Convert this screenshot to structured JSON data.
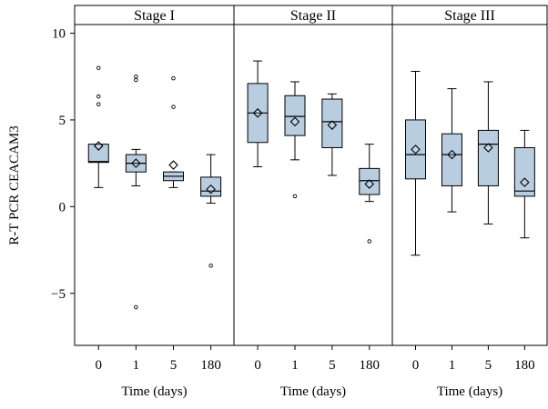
{
  "chart_data": {
    "type": "boxplot",
    "ylabel": "R-T PCR CEACAM3",
    "xlabel": "Time (days)",
    "ylim": [
      -8,
      10.5
    ],
    "y_ticks": [
      -5,
      0,
      5,
      10
    ],
    "y_tick_labels": [
      "−5",
      "0",
      "5",
      "10"
    ],
    "categories": [
      "0",
      "1",
      "5",
      "180"
    ],
    "box_color": "#b8cde0",
    "grid": false,
    "panels": [
      {
        "title": "Stage I",
        "boxes": [
          {
            "category": "0",
            "whisker_low": 1.1,
            "q1": 2.55,
            "median": 2.6,
            "q3": 3.6,
            "whisker_high": 3.6,
            "mean": 3.5,
            "outliers": [
              8.0,
              6.35,
              5.9
            ]
          },
          {
            "category": "1",
            "whisker_low": 1.2,
            "q1": 2.0,
            "median": 2.5,
            "q3": 3.0,
            "whisker_high": 3.3,
            "mean": 2.5,
            "outliers": [
              7.5,
              7.3,
              -5.8
            ]
          },
          {
            "category": "5",
            "whisker_low": 1.1,
            "q1": 1.5,
            "median": 1.75,
            "q3": 2.0,
            "whisker_high": 2.0,
            "mean": 2.4,
            "outliers": [
              7.4,
              5.75
            ]
          },
          {
            "category": "180",
            "whisker_low": 0.2,
            "q1": 0.6,
            "median": 0.9,
            "q3": 1.7,
            "whisker_high": 3.0,
            "mean": 1.0,
            "outliers": [
              -3.4
            ]
          }
        ]
      },
      {
        "title": "Stage II",
        "boxes": [
          {
            "category": "0",
            "whisker_low": 2.3,
            "q1": 3.7,
            "median": 5.4,
            "q3": 7.1,
            "whisker_high": 8.4,
            "mean": 5.4,
            "outliers": []
          },
          {
            "category": "1",
            "whisker_low": 2.7,
            "q1": 4.1,
            "median": 5.2,
            "q3": 6.4,
            "whisker_high": 7.2,
            "mean": 4.9,
            "outliers": [
              0.6
            ]
          },
          {
            "category": "5",
            "whisker_low": 1.8,
            "q1": 3.4,
            "median": 4.9,
            "q3": 6.2,
            "whisker_high": 6.5,
            "mean": 4.7,
            "outliers": []
          },
          {
            "category": "180",
            "whisker_low": 0.3,
            "q1": 0.7,
            "median": 1.5,
            "q3": 2.2,
            "whisker_high": 3.6,
            "mean": 1.3,
            "outliers": [
              -2.0
            ]
          }
        ]
      },
      {
        "title": "Stage III",
        "boxes": [
          {
            "category": "0",
            "whisker_low": -2.8,
            "q1": 1.6,
            "median": 3.0,
            "q3": 5.0,
            "whisker_high": 7.8,
            "mean": 3.3,
            "outliers": []
          },
          {
            "category": "1",
            "whisker_low": -0.3,
            "q1": 1.2,
            "median": 3.0,
            "q3": 4.2,
            "whisker_high": 6.8,
            "mean": 3.0,
            "outliers": []
          },
          {
            "category": "5",
            "whisker_low": -1.0,
            "q1": 1.2,
            "median": 3.6,
            "q3": 4.4,
            "whisker_high": 7.2,
            "mean": 3.4,
            "outliers": []
          },
          {
            "category": "180",
            "whisker_low": -1.8,
            "q1": 0.6,
            "median": 0.9,
            "q3": 3.4,
            "whisker_high": 4.4,
            "mean": 1.4,
            "outliers": []
          }
        ]
      }
    ]
  }
}
